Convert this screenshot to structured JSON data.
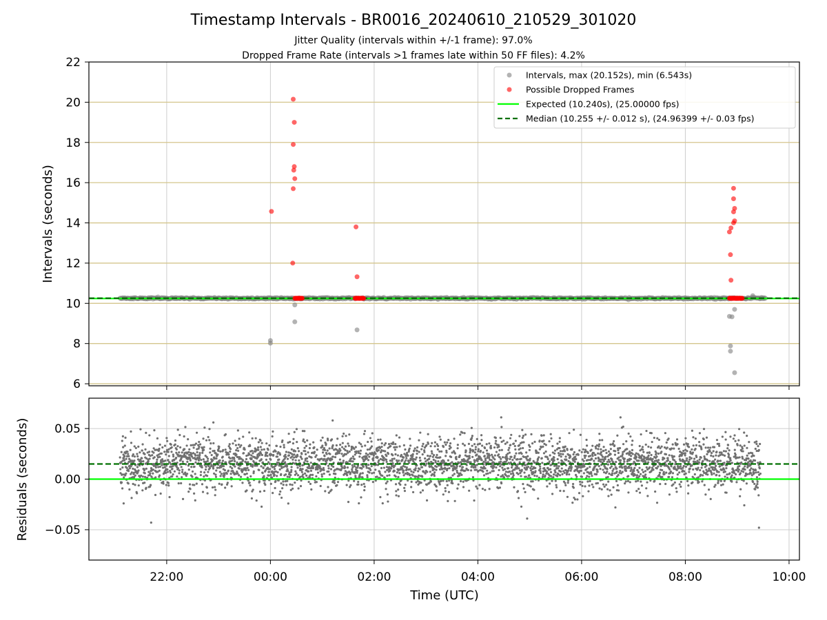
{
  "chart_data": [
    {
      "type": "scatter",
      "title": "Timestamp Intervals - BR0016_20240610_210529_301020",
      "subtitle_lines": [
        "Jitter Quality (intervals within +/-1 frame): 97.0%",
        "Dropped Frame Rate (intervals >1 frames late within 50 FF files): 4.2%"
      ],
      "xlabel": "",
      "ylabel": "Intervals (seconds)",
      "xlim_hours": [
        -3.5,
        10.2
      ],
      "ylim": [
        5.9,
        22
      ],
      "yticks": [
        6,
        8,
        10,
        12,
        14,
        16,
        18,
        20,
        22
      ],
      "ytick_labels": [
        "6",
        "8",
        "10",
        "12",
        "14",
        "16",
        "18",
        "20",
        "22"
      ],
      "hlines_gold": [
        6,
        8,
        10,
        12,
        14,
        16,
        18,
        20
      ],
      "grid": true,
      "legend_position": "top-right",
      "legend": [
        {
          "label": "Intervals, max (20.152s), min (6.543s)",
          "kind": "gray-marker"
        },
        {
          "label": "Possible Dropped Frames",
          "kind": "red-marker"
        },
        {
          "label": "Expected (10.240s), (25.00000 fps)",
          "kind": "green-line"
        },
        {
          "label": "Median (10.255 +/- 0.012 s), (24.96399 +/- 0.03 fps)",
          "kind": "darkgreen-dashed"
        }
      ],
      "expected_value": 10.24,
      "median_value": 10.255,
      "series": [
        {
          "name": "Intervals, max (20.152s), min (6.543s)",
          "color": "#808080",
          "baseline_band": {
            "x_start": -2.9,
            "x_end": 9.55,
            "y": 10.25
          },
          "points": [
            {
              "x": 0.0,
              "y": 8.15
            },
            {
              "x": 0.0,
              "y": 8.02
            },
            {
              "x": 0.47,
              "y": 9.92
            },
            {
              "x": 0.47,
              "y": 9.08
            },
            {
              "x": 1.67,
              "y": 8.68
            },
            {
              "x": 8.85,
              "y": 9.35
            },
            {
              "x": 8.9,
              "y": 9.33
            },
            {
              "x": 8.95,
              "y": 9.7
            },
            {
              "x": 8.87,
              "y": 7.88
            },
            {
              "x": 8.87,
              "y": 7.62
            },
            {
              "x": 8.95,
              "y": 6.55
            },
            {
              "x": 9.3,
              "y": 10.38
            }
          ]
        },
        {
          "name": "Possible Dropped Frames",
          "color": "#ff0000",
          "clusters": [
            {
              "x_start": 0.47,
              "x_end": 0.62,
              "y": 10.25
            },
            {
              "x_start": 1.63,
              "x_end": 1.8,
              "y": 10.25
            },
            {
              "x_start": 8.85,
              "x_end": 9.1,
              "y": 10.25
            }
          ],
          "points": [
            {
              "x": 0.02,
              "y": 14.57
            },
            {
              "x": 0.44,
              "y": 20.15
            },
            {
              "x": 0.46,
              "y": 19.0
            },
            {
              "x": 0.44,
              "y": 17.9
            },
            {
              "x": 0.46,
              "y": 16.8
            },
            {
              "x": 0.45,
              "y": 16.62
            },
            {
              "x": 0.47,
              "y": 16.2
            },
            {
              "x": 0.44,
              "y": 15.7
            },
            {
              "x": 0.43,
              "y": 12.0
            },
            {
              "x": 1.65,
              "y": 13.8
            },
            {
              "x": 1.67,
              "y": 11.32
            },
            {
              "x": 8.93,
              "y": 15.72
            },
            {
              "x": 8.93,
              "y": 15.2
            },
            {
              "x": 8.95,
              "y": 14.72
            },
            {
              "x": 8.93,
              "y": 14.55
            },
            {
              "x": 8.95,
              "y": 14.1
            },
            {
              "x": 8.93,
              "y": 14.0
            },
            {
              "x": 8.88,
              "y": 13.75
            },
            {
              "x": 8.85,
              "y": 13.55
            },
            {
              "x": 8.87,
              "y": 12.42
            },
            {
              "x": 8.88,
              "y": 11.15
            }
          ]
        }
      ]
    },
    {
      "type": "scatter",
      "xlabel": "Time (UTC)",
      "ylabel": "Residuals (seconds)",
      "xlim_hours": [
        -3.5,
        10.2
      ],
      "ylim": [
        -0.08,
        0.08
      ],
      "yticks": [
        -0.05,
        0.0,
        0.05
      ],
      "ytick_labels": [
        "−0.05",
        "0.00",
        "0.05"
      ],
      "xticks_hours": [
        -2,
        0,
        2,
        4,
        6,
        8,
        10
      ],
      "xtick_labels": [
        "22:00",
        "00:00",
        "02:00",
        "04:00",
        "06:00",
        "08:00",
        "10:00"
      ],
      "grid": true,
      "expected_line": 0.0,
      "median_line": 0.015,
      "series": [
        {
          "name": "Residuals",
          "color": "#808080",
          "distribution": {
            "x_start": -2.9,
            "x_end": 9.45,
            "center": 0.015,
            "spread": 0.013
          },
          "outliers": [
            {
              "x": -2.83,
              "y": -0.024
            },
            {
              "x": -2.3,
              "y": -0.043
            },
            {
              "x": -1.45,
              "y": -0.021
            },
            {
              "x": 4.95,
              "y": -0.039
            },
            {
              "x": 9.42,
              "y": -0.048
            },
            {
              "x": 1.2,
              "y": 0.058
            },
            {
              "x": 4.45,
              "y": 0.061
            },
            {
              "x": 6.75,
              "y": 0.061
            },
            {
              "x": -1.1,
              "y": 0.056
            }
          ]
        }
      ]
    }
  ]
}
